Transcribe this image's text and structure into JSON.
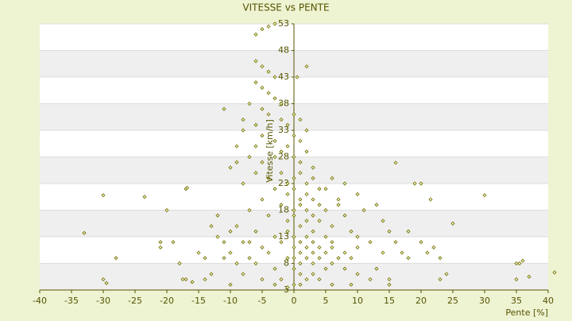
{
  "chart_data": {
    "type": "scatter",
    "title": "VITESSE vs PENTE",
    "x_label": "Pente [%]",
    "y_label": "Vitesse [km/h]",
    "xlim": [
      -40,
      40
    ],
    "xticks": [
      -40,
      -35,
      -30,
      -25,
      -20,
      -15,
      -10,
      -5,
      0,
      5,
      10,
      15,
      20,
      25,
      30,
      35,
      40
    ],
    "ylim": [
      3,
      53
    ],
    "yticks": [
      3,
      8,
      13,
      18,
      23,
      28,
      33,
      38,
      43,
      48,
      53
    ],
    "grid": true,
    "color": "#6b6b00",
    "x": [
      -5,
      -4,
      -3,
      -6,
      -6,
      -5,
      -4,
      -3,
      -6,
      -5,
      -4,
      -3,
      -2,
      0.5,
      2,
      -7,
      -11,
      -8,
      -6,
      -4,
      -2,
      -1,
      0,
      1,
      2,
      -5,
      -3,
      -1,
      0,
      1,
      -9,
      -7,
      -5,
      -3,
      -2,
      0,
      1,
      2,
      3,
      -10,
      -6,
      -4,
      -2,
      -1,
      0,
      1,
      2,
      3,
      4,
      -8,
      -3,
      -1,
      0,
      1,
      2,
      3,
      5,
      6,
      8,
      -5,
      -2,
      0,
      1,
      2,
      3,
      4,
      5,
      7,
      10,
      -7,
      -4,
      -1,
      0,
      1,
      2,
      3,
      4,
      6,
      8,
      -9,
      -6,
      -3,
      -1,
      0,
      1,
      2,
      3,
      4,
      5,
      -12,
      -8,
      -5,
      -2,
      0,
      1,
      2,
      3,
      4,
      5,
      6,
      7,
      8,
      9,
      10,
      12,
      14,
      -10,
      -7,
      -4,
      -1,
      0,
      1,
      2,
      3,
      6,
      8,
      -14,
      -6,
      -3,
      0,
      1,
      3,
      5,
      10,
      13,
      15,
      -8,
      -5,
      -2,
      0,
      2,
      4,
      6,
      9,
      12,
      15,
      -10,
      -3,
      -1,
      1,
      -33,
      -30,
      -23.5,
      -17,
      -16.8,
      -20,
      -19,
      -21,
      -21,
      -15,
      -28,
      -30,
      -29.5,
      -18,
      -17,
      -17.5,
      -16,
      -14,
      -13,
      -11,
      16,
      19,
      20,
      21.5,
      30,
      25,
      18,
      20,
      22,
      18,
      17,
      16,
      15,
      21,
      23,
      24,
      23,
      35,
      35.5,
      36,
      35,
      37,
      41,
      14,
      11,
      13,
      9,
      10,
      7,
      6,
      -13,
      -12,
      -7,
      -9,
      -11,
      -10,
      -9,
      -8,
      -6,
      -5
    ],
    "values": [
      52,
      52.5,
      53,
      51,
      46,
      45,
      44,
      43,
      42,
      41,
      40,
      39,
      38,
      43,
      45,
      38,
      37,
      35,
      34,
      36,
      35,
      34,
      36,
      35,
      33,
      32,
      31,
      30,
      32,
      31,
      30,
      28,
      27,
      28,
      29,
      28,
      27,
      29,
      26,
      26,
      25,
      24,
      25,
      23,
      24,
      25,
      23,
      24,
      22,
      23,
      22,
      21,
      22,
      20,
      21,
      20,
      22,
      24,
      23,
      20,
      19,
      18,
      19,
      18,
      17,
      19,
      18,
      20,
      21,
      18,
      17,
      16,
      17,
      15,
      16,
      14,
      16,
      15,
      17,
      15,
      14,
      13,
      14,
      13,
      12,
      13,
      12,
      11,
      13,
      13,
      12,
      11,
      12,
      11,
      10,
      11,
      10,
      9,
      10,
      11,
      9,
      10,
      9,
      11,
      12,
      10,
      10,
      9,
      10,
      9,
      9,
      8,
      9,
      8,
      8,
      7,
      9,
      8,
      7,
      7,
      6,
      6,
      7,
      6,
      7,
      5,
      6,
      5,
      5,
      4,
      5,
      5,
      4,
      4,
      5,
      4,
      4,
      4,
      3.5,
      4,
      13.7,
      20.8,
      20.5,
      22,
      22.2,
      18,
      12,
      11,
      12,
      10,
      9,
      5,
      4.3,
      8,
      5,
      5,
      4.5,
      5,
      6,
      12,
      26.9,
      23,
      23,
      20,
      20.8,
      15.5,
      14,
      12,
      11,
      9,
      10,
      12,
      14,
      10,
      9,
      6,
      5,
      8,
      8,
      8.5,
      5,
      5.5,
      6.3,
      16,
      18,
      19,
      14,
      13,
      19,
      12,
      15,
      17,
      12,
      8,
      9,
      14,
      27,
      33,
      30,
      37
    ]
  }
}
